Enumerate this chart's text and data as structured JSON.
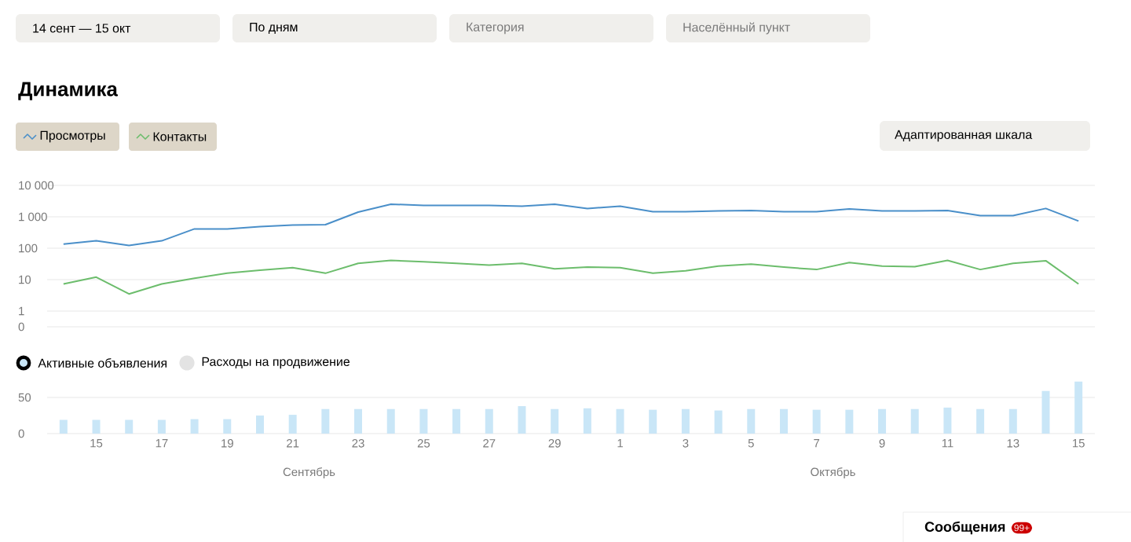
{
  "chart_data": [
    {
      "type": "line",
      "title": "Динамика",
      "log": "y",
      "grid": "y",
      "legend": "top left",
      "tick_labels": "y",
      "categories": [
        null,
        "15",
        null,
        "17",
        null,
        "19",
        null,
        "21",
        null,
        "23",
        null,
        "25",
        null,
        "27",
        null,
        "29",
        null,
        "1",
        null,
        "3",
        null,
        "5",
        null,
        "7",
        null,
        "9",
        null,
        "11",
        null,
        "13",
        null,
        "15"
      ],
      "ylim": [
        0,
        10000
      ],
      "yticks": [
        0,
        {
          "value": 1,
          "label": "1"
        },
        {
          "value": 10,
          "label": "10"
        },
        {
          "value": 100,
          "label": "100"
        },
        {
          "value": 1000,
          "label": "1 000"
        },
        {
          "value": 10000,
          "label": "10 000"
        }
      ],
      "annotations": [
        "14 сент — 15 окт",
        "По дням",
        "Категория",
        "Населённый пункт",
        "Адаптированная шкала"
      ],
      "series": [
        {
          "name": "Просмотры",
          "color": "#4a8fc9",
          "values": [
            136,
            172,
            122,
            172,
            412,
            412,
            484,
            543,
            562,
            1413,
            2512,
            2317,
            2317,
            2317,
            2163,
            2512,
            1841,
            2163,
            1462,
            1462,
            1531,
            1585,
            1462,
            1462,
            1778,
            1531,
            1531,
            1585,
            1084,
            1084,
            1841,
            733
          ]
        },
        {
          "name": "Контакты",
          "color": "#6cbd6c",
          "values": [
            7.3,
            12,
            3.5,
            7.3,
            11,
            16,
            20,
            24,
            16,
            33,
            41,
            37,
            33,
            29,
            33,
            22,
            25,
            24,
            16,
            19,
            27,
            31,
            25,
            21,
            35,
            27,
            26,
            41,
            21,
            33,
            40,
            7.3
          ]
        }
      ]
    },
    {
      "type": "bar",
      "grid": "y",
      "legend": "top left",
      "categories": [
        null,
        "15",
        null,
        "17",
        null,
        "19",
        null,
        "21",
        null,
        "23",
        null,
        "25",
        null,
        "27",
        null,
        "29",
        null,
        "1",
        null,
        "3",
        null,
        "5",
        null,
        "7",
        null,
        "9",
        null,
        "11",
        null,
        "13",
        null,
        "15"
      ],
      "ylim": [
        0,
        75
      ],
      "yticks": [
        0,
        50
      ],
      "annotations": [
        "Сентябрь",
        "Октябрь",
        "Сообщения",
        "99+"
      ],
      "series": [
        {
          "name": "Активные объявления",
          "color": "#c9e6f7",
          "values": [
            19,
            19,
            19,
            19,
            20,
            20,
            25,
            26,
            34,
            34,
            34,
            34,
            34,
            34,
            38,
            34,
            35,
            34,
            33,
            34,
            32,
            34,
            34,
            33,
            33,
            34,
            34,
            36,
            34,
            34,
            59,
            72
          ]
        },
        {
          "name": "Расходы на продвижение",
          "color": "#e3e3e3",
          "values": [
            null,
            null,
            null,
            null,
            null,
            null,
            null,
            null,
            null,
            null,
            null,
            null,
            null,
            null,
            null,
            null,
            null,
            null,
            null,
            null,
            null,
            null,
            null,
            null,
            null,
            null,
            null,
            null,
            null,
            null,
            null,
            null
          ]
        }
      ]
    }
  ]
}
